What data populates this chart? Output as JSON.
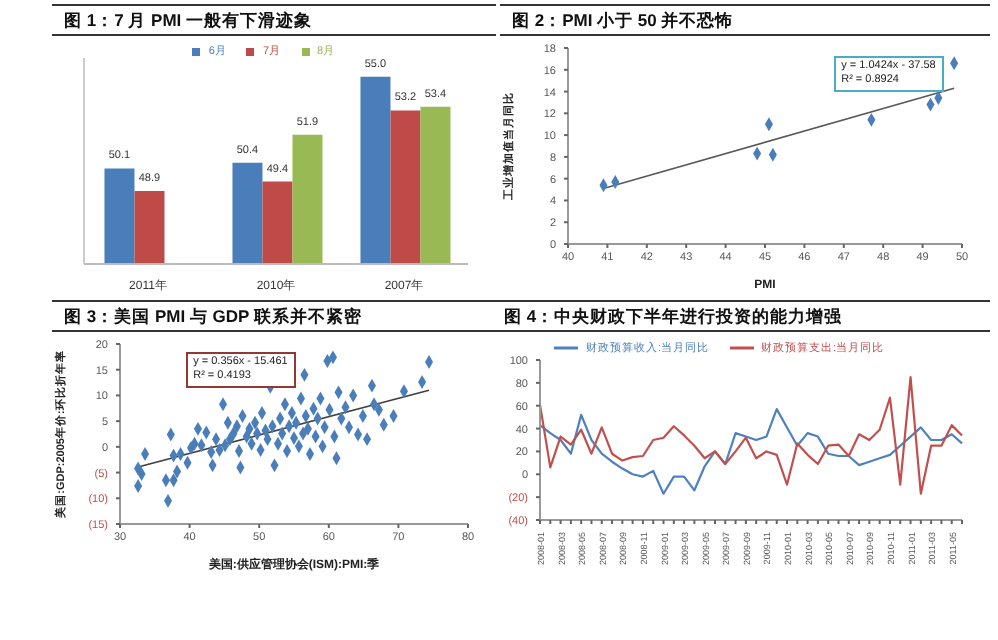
{
  "chart_data": [
    {
      "type": "bar",
      "title": "图 1：7 月 PMI 一般有下滑迹象",
      "categories": [
        "2011年",
        "2010年",
        "2007年"
      ],
      "legend": "top",
      "tick_labels": "x",
      "ylim": [
        45,
        56
      ],
      "series": [
        {
          "name": "6月",
          "color": "#4a7ebb",
          "values": [
            50.1,
            50.4,
            55.0
          ],
          "value_labels": [
            "50.1",
            "50.4",
            "55.0"
          ]
        },
        {
          "name": "7月",
          "color": "#be4b48",
          "values": [
            48.9,
            49.4,
            53.2
          ],
          "value_labels": [
            "48.9",
            "49.4",
            "53.2"
          ]
        },
        {
          "name": "8月",
          "color": "#98b954",
          "values": [
            null,
            51.9,
            53.4
          ],
          "value_labels": [
            null,
            "51.9",
            "53.4"
          ]
        }
      ]
    },
    {
      "type": "scatter",
      "title": "图 2：PMI 小于 50 并不恐怖",
      "xlabel": "PMI",
      "ylabel": "工业增加值当月同比",
      "xlim": [
        40,
        50
      ],
      "xticks": [
        40,
        41,
        42,
        43,
        44,
        45,
        46,
        47,
        48,
        49,
        50
      ],
      "ylim": [
        0,
        18
      ],
      "yticks": [
        0,
        2,
        4,
        6,
        8,
        10,
        12,
        14,
        16,
        18
      ],
      "annotations": [
        "y = 1.0424x - 37.58",
        "R² = 0.8924"
      ],
      "series": [
        {
          "type": "scatter",
          "marker": "diamond",
          "color": "#4a7ebb",
          "x": [
            40.9,
            41.2,
            44.8,
            45.1,
            45.2,
            47.7,
            49.2,
            49.4,
            49.8
          ],
          "values": [
            5.4,
            5.7,
            8.3,
            11.0,
            8.2,
            11.4,
            12.8,
            13.4,
            16.6
          ]
        },
        {
          "type": "line",
          "color": "#595959",
          "x": [
            40.9,
            49.8
          ],
          "values": [
            5.1,
            14.3
          ]
        }
      ]
    },
    {
      "type": "scatter",
      "title": "图 3：美国 PMI 与 GDP 联系并不紧密",
      "xlabel": "美国:供应管理协会(ISM):PMI:季",
      "ylabel": "美国:GDP:2005年价:环比折年率",
      "xlim": [
        30,
        80
      ],
      "xticks": [
        30,
        40,
        50,
        60,
        70,
        80
      ],
      "ylim": [
        -15,
        20
      ],
      "yticks": [
        {
          "value": -15,
          "label": "(15)"
        },
        {
          "value": -10,
          "label": "(10)"
        },
        {
          "value": -5,
          "label": "(5)"
        },
        0,
        5,
        10,
        15,
        20
      ],
      "annotations": [
        "y = 0.356x - 15.461",
        "R² = 0.4193"
      ],
      "series": [
        {
          "type": "scatter",
          "marker": "diamond",
          "color": "#4a7ebb",
          "x": [
            32.6,
            32.6,
            33.1,
            33.6,
            36.6,
            36.9,
            37.3,
            37.7,
            38.2,
            37.7,
            38.7,
            39.7,
            40.2,
            40.7,
            41.2,
            41.7,
            42.4,
            43.1,
            43.3,
            43.8,
            44.3,
            44.8,
            45.1,
            45.5,
            45.8,
            46.3,
            46.8,
            47.1,
            47.3,
            47.6,
            48.2,
            48.6,
            48.9,
            49.4,
            49.7,
            50.2,
            50.4,
            50.9,
            51.2,
            51.6,
            51.9,
            52.2,
            52.7,
            53.0,
            53.3,
            53.7,
            54.0,
            54.3,
            54.7,
            55.0,
            55.3,
            55.7,
            56.0,
            56.3,
            56.5,
            56.7,
            57.0,
            57.3,
            57.8,
            58.1,
            58.4,
            58.8,
            59.1,
            59.4,
            59.8,
            60.1,
            60.6,
            60.8,
            61.1,
            61.4,
            61.8,
            62.4,
            62.9,
            63.5,
            64.2,
            64.9,
            65.5,
            66.2,
            66.5,
            67.2,
            67.9,
            69.3,
            70.8,
            73.4,
            74.4
          ],
          "values": [
            -4.2,
            -7.6,
            -5.3,
            -1.4,
            -6.5,
            -10.5,
            2.4,
            -6.5,
            -4.8,
            -1.7,
            -1.4,
            -3.1,
            -0.2,
            0.6,
            3.5,
            0.3,
            2.8,
            -1.0,
            -3.6,
            1.5,
            -0.6,
            8.3,
            0.3,
            4.7,
            1.5,
            2.6,
            4.0,
            -0.8,
            -4.0,
            6.0,
            2.0,
            3.5,
            0.6,
            4.7,
            2.6,
            -0.6,
            6.6,
            3.2,
            1.5,
            11.7,
            4.0,
            -3.6,
            0.6,
            5.5,
            2.6,
            8.3,
            -0.8,
            4.0,
            6.6,
            1.7,
            4.7,
            0.1,
            9.4,
            2.6,
            14.0,
            6.0,
            3.5,
            -1.4,
            7.4,
            2.0,
            5.5,
            9.4,
            0.1,
            3.8,
            16.7,
            7.2,
            17.4,
            2.0,
            -2.2,
            10.6,
            5.5,
            7.7,
            3.8,
            10.0,
            2.4,
            6.0,
            1.5,
            11.9,
            8.3,
            7.2,
            4.3,
            6.0,
            10.8,
            12.6,
            16.5
          ]
        },
        {
          "type": "line",
          "color": "#404040",
          "x": [
            32.6,
            74.4
          ],
          "values": [
            -3.9,
            11.0
          ]
        }
      ]
    },
    {
      "type": "line",
      "title": "图 4：中央财政下半年进行投资的能力增强",
      "legend": "top",
      "marker": "none",
      "ylim": [
        -40,
        100
      ],
      "yticks": [
        {
          "value": -40,
          "label": "(40)"
        },
        {
          "value": -20,
          "label": "(20)"
        },
        0,
        20,
        40,
        60,
        80,
        100
      ],
      "categories": [
        "2008-01",
        null,
        "2008-03",
        null,
        "2008-05",
        null,
        "2008-07",
        null,
        "2008-09",
        null,
        "2008-11",
        null,
        "2009-01",
        null,
        "2009-03",
        null,
        "2009-05",
        null,
        "2009-07",
        null,
        "2009-09",
        null,
        "2009-11",
        null,
        "2010-01",
        null,
        "2010-03",
        null,
        "2010-05",
        null,
        "2010-07",
        null,
        "2010-09",
        null,
        "2010-11",
        null,
        "2011-01",
        null,
        "2011-03",
        null,
        "2011-05",
        null
      ],
      "series": [
        {
          "name": "财政预算收入:当月同比",
          "color": "#4f81bd",
          "values": [
            43,
            36,
            30,
            18,
            52,
            30,
            18,
            11,
            5,
            0,
            -2,
            3,
            -17,
            -2,
            -2,
            -14,
            7,
            20,
            9,
            36,
            33,
            30,
            33,
            57,
            41,
            25,
            36,
            33,
            18,
            16,
            16,
            8,
            11,
            14,
            17,
            25,
            33,
            41,
            30,
            30,
            35,
            27
          ]
        },
        {
          "name": "财政预算支出:当月同比",
          "color": "#c0504d",
          "values": [
            61,
            6,
            33,
            26,
            39,
            18,
            41,
            18,
            12,
            15,
            16,
            30,
            32,
            42,
            34,
            25,
            14,
            20,
            9,
            20,
            32,
            14,
            20,
            17,
            -9,
            27,
            17,
            9,
            25,
            26,
            16,
            35,
            30,
            39,
            67,
            -9,
            85,
            -17,
            25,
            25,
            43,
            34
          ]
        }
      ]
    }
  ]
}
